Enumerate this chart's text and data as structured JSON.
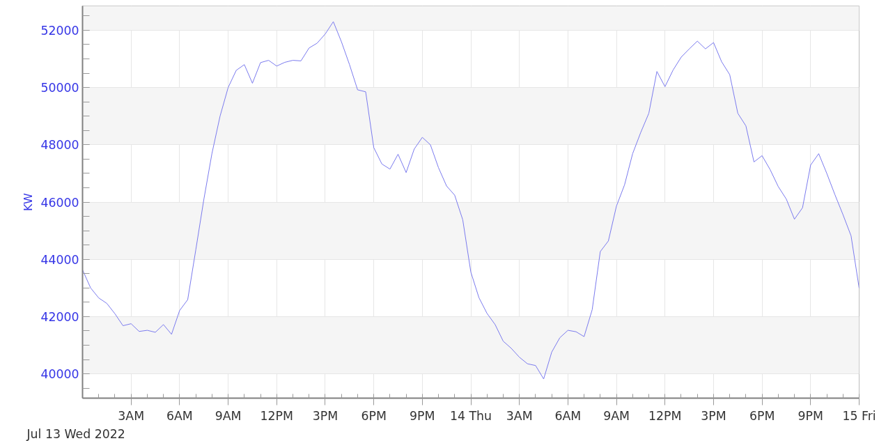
{
  "chart_data": {
    "type": "line",
    "ylabel": "KW",
    "annotations": [
      "Jul 13 Wed 2022"
    ],
    "x": [
      "2022-07-13T00:00",
      "2022-07-13T00:30",
      "2022-07-13T01:00",
      "2022-07-13T01:30",
      "2022-07-13T02:00",
      "2022-07-13T02:30",
      "2022-07-13T03:00",
      "2022-07-13T03:30",
      "2022-07-13T04:00",
      "2022-07-13T04:30",
      "2022-07-13T05:00",
      "2022-07-13T05:30",
      "2022-07-13T06:00",
      "2022-07-13T06:30",
      "2022-07-13T07:00",
      "2022-07-13T07:30",
      "2022-07-13T08:00",
      "2022-07-13T08:30",
      "2022-07-13T09:00",
      "2022-07-13T09:30",
      "2022-07-13T10:00",
      "2022-07-13T10:30",
      "2022-07-13T11:00",
      "2022-07-13T11:30",
      "2022-07-13T12:00",
      "2022-07-13T12:30",
      "2022-07-13T13:00",
      "2022-07-13T13:30",
      "2022-07-13T14:00",
      "2022-07-13T14:30",
      "2022-07-13T15:00",
      "2022-07-13T15:30",
      "2022-07-13T16:00",
      "2022-07-13T16:30",
      "2022-07-13T17:00",
      "2022-07-13T17:30",
      "2022-07-13T18:00",
      "2022-07-13T18:30",
      "2022-07-13T19:00",
      "2022-07-13T19:30",
      "2022-07-13T20:00",
      "2022-07-13T20:30",
      "2022-07-13T21:00",
      "2022-07-13T21:30",
      "2022-07-13T22:00",
      "2022-07-13T22:30",
      "2022-07-13T23:00",
      "2022-07-13T23:30",
      "2022-07-14T00:00",
      "2022-07-14T00:30",
      "2022-07-14T01:00",
      "2022-07-14T01:30",
      "2022-07-14T02:00",
      "2022-07-14T02:30",
      "2022-07-14T03:00",
      "2022-07-14T03:30",
      "2022-07-14T04:00",
      "2022-07-14T04:30",
      "2022-07-14T05:00",
      "2022-07-14T05:30",
      "2022-07-14T06:00",
      "2022-07-14T06:30",
      "2022-07-14T07:00",
      "2022-07-14T07:30",
      "2022-07-14T08:00",
      "2022-07-14T08:30",
      "2022-07-14T09:00",
      "2022-07-14T09:30",
      "2022-07-14T10:00",
      "2022-07-14T10:30",
      "2022-07-14T11:00",
      "2022-07-14T11:30",
      "2022-07-14T12:00",
      "2022-07-14T12:30",
      "2022-07-14T13:00",
      "2022-07-14T13:30",
      "2022-07-14T14:00",
      "2022-07-14T14:30",
      "2022-07-14T15:00",
      "2022-07-14T15:30",
      "2022-07-14T16:00",
      "2022-07-14T16:30",
      "2022-07-14T17:00",
      "2022-07-14T17:30",
      "2022-07-14T18:00",
      "2022-07-14T18:30",
      "2022-07-14T19:00",
      "2022-07-14T19:30",
      "2022-07-14T20:00",
      "2022-07-14T20:30",
      "2022-07-14T21:00",
      "2022-07-14T21:30",
      "2022-07-14T22:00",
      "2022-07-14T22:30",
      "2022-07-14T23:00",
      "2022-07-14T23:30",
      "2022-07-15T00:00"
    ],
    "series": [
      {
        "color": "#7b7bee",
        "values": [
          43630,
          43000,
          42650,
          42460,
          42100,
          41680,
          41750,
          41480,
          41520,
          41450,
          41720,
          41380,
          42210,
          42590,
          44330,
          46100,
          47700,
          49000,
          50000,
          50600,
          50800,
          50150,
          50870,
          50950,
          50750,
          50880,
          50950,
          50930,
          51380,
          51550,
          51870,
          52300,
          51600,
          50800,
          49920,
          49850,
          47900,
          47330,
          47150,
          47670,
          47030,
          47850,
          48260,
          48000,
          47200,
          46560,
          46240,
          45380,
          43550,
          42660,
          42110,
          41720,
          41140,
          40890,
          40580,
          40350,
          40290,
          39820,
          40760,
          41260,
          41520,
          41470,
          41300,
          42240,
          44270,
          44640,
          45860,
          46600,
          47690,
          48430,
          49100,
          50560,
          50030,
          50610,
          51060,
          51350,
          51620,
          51350,
          51570,
          50900,
          50450,
          49100,
          48660,
          47400,
          47620,
          47130,
          46540,
          46100,
          45400,
          45800,
          47290,
          47690,
          47000,
          46260,
          45560,
          44820,
          42990
        ]
      }
    ],
    "xlim": [
      "2022-07-13T00:00",
      "2022-07-15T00:00"
    ],
    "ylim": [
      39150,
      52850
    ],
    "xticks": [
      {
        "value": "2022-07-13T03:00",
        "label": "3AM"
      },
      {
        "value": "2022-07-13T06:00",
        "label": "6AM"
      },
      {
        "value": "2022-07-13T09:00",
        "label": "9AM"
      },
      {
        "value": "2022-07-13T12:00",
        "label": "12PM"
      },
      {
        "value": "2022-07-13T15:00",
        "label": "3PM"
      },
      {
        "value": "2022-07-13T18:00",
        "label": "6PM"
      },
      {
        "value": "2022-07-13T21:00",
        "label": "9PM"
      },
      {
        "value": "2022-07-14T00:00",
        "label": "14 Thu"
      },
      {
        "value": "2022-07-14T03:00",
        "label": "3AM"
      },
      {
        "value": "2022-07-14T06:00",
        "label": "6AM"
      },
      {
        "value": "2022-07-14T09:00",
        "label": "9AM"
      },
      {
        "value": "2022-07-14T12:00",
        "label": "12PM"
      },
      {
        "value": "2022-07-14T15:00",
        "label": "3PM"
      },
      {
        "value": "2022-07-14T18:00",
        "label": "6PM"
      },
      {
        "value": "2022-07-14T21:00",
        "label": "9PM"
      },
      {
        "value": "2022-07-15T00:00",
        "label": "15 Fri"
      }
    ],
    "yticks": [
      40000,
      42000,
      44000,
      46000,
      48000,
      50000,
      52000
    ],
    "grid": true,
    "marker": "none",
    "line_style": "solid"
  }
}
